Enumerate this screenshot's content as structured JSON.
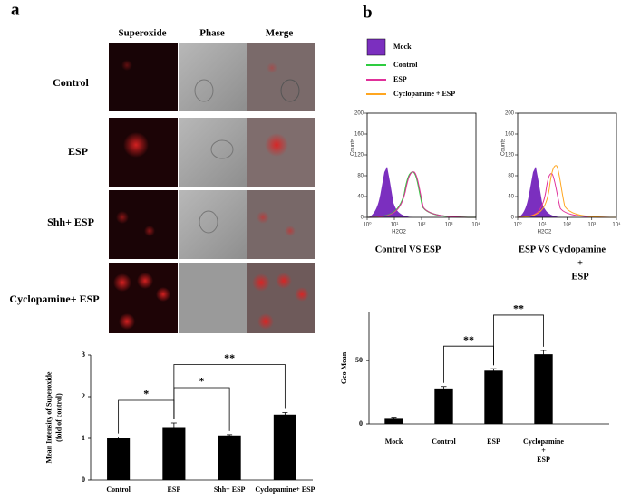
{
  "panel_labels": [
    "a",
    "b"
  ],
  "microscopy": {
    "columns": [
      "Superoxide",
      "Phase",
      "Merge"
    ],
    "rows": [
      "Control",
      "ESP",
      "Shh+ ESP",
      "Cyclopamine+ ESP"
    ]
  },
  "flow": {
    "legend": [
      {
        "name": "Mock",
        "color": "#7b2fbf",
        "fill": true
      },
      {
        "name": "Control",
        "color": "#2ecc40"
      },
      {
        "name": "ESP",
        "color": "#e0309a"
      },
      {
        "name": "Cyclopamine + ESP",
        "color": "#ffa620"
      }
    ],
    "plots": [
      {
        "y_label": "Counts",
        "x_label": "H2O2",
        "caption": [
          "Control   VS   ESP"
        ],
        "xscale": "log",
        "xlim": [
          1,
          10000
        ],
        "xticks": [
          {
            "value": 1,
            "label": "10⁰"
          },
          {
            "value": 10,
            "label": "10¹"
          },
          {
            "value": 100,
            "label": "10²"
          },
          {
            "value": 1000,
            "label": "10³"
          },
          {
            "value": 10000,
            "label": "10⁴"
          }
        ],
        "ylim": [
          0,
          200
        ],
        "yticks": [
          0,
          40,
          80,
          120,
          160,
          200
        ]
      },
      {
        "y_label": "Counts",
        "x_label": "H2O2",
        "caption": [
          "ESP   VS   Cyclopamine",
          "+",
          "ESP"
        ],
        "xscale": "log",
        "xlim": [
          1,
          10000
        ],
        "xticks": [
          {
            "value": 1,
            "label": "10⁰"
          },
          {
            "value": 10,
            "label": "10¹"
          },
          {
            "value": 100,
            "label": "10²"
          },
          {
            "value": 1000,
            "label": "10³"
          },
          {
            "value": 10000,
            "label": "10⁴"
          }
        ],
        "ylim": [
          0,
          200
        ],
        "yticks": [
          0,
          40,
          80,
          120,
          160,
          200
        ]
      }
    ]
  },
  "chart_data": [
    {
      "type": "bar",
      "y_label": [
        "Mean Intensity of Superoxide",
        "(fold of control)"
      ],
      "categories": [
        "Control",
        "ESP",
        "Shh+ ESP",
        "Cyclopamine+ ESP"
      ],
      "values": [
        1.0,
        1.25,
        1.07,
        1.57
      ],
      "errors": [
        0.03,
        0.12,
        0.02,
        0.05
      ],
      "color": "#000000",
      "ylim": [
        0,
        3
      ],
      "yticks": [
        0,
        1,
        2,
        3
      ],
      "annotations": [
        {
          "text": "*",
          "between": [
            "Control",
            "ESP"
          ]
        },
        {
          "text": "*",
          "between": [
            "ESP",
            "Shh+ ESP"
          ]
        },
        {
          "text": "**",
          "between": [
            "ESP",
            "Cyclopamine+ ESP"
          ]
        }
      ]
    },
    {
      "type": "bar",
      "y_label": [
        "Geo Mean"
      ],
      "categories": [
        "Mock",
        "Control",
        "ESP",
        "Cyclopamine + ESP"
      ],
      "values": [
        4,
        28,
        42,
        55
      ],
      "errors": [
        0.5,
        1.5,
        1.5,
        3
      ],
      "color": "#000000",
      "ylim": [
        0,
        88
      ],
      "yticks": [
        0,
        50
      ],
      "annotations": [
        {
          "text": "**",
          "between": [
            "Control",
            "ESP"
          ]
        },
        {
          "text": "**",
          "between": [
            "ESP",
            "Cyclopamine + ESP"
          ]
        }
      ]
    }
  ]
}
